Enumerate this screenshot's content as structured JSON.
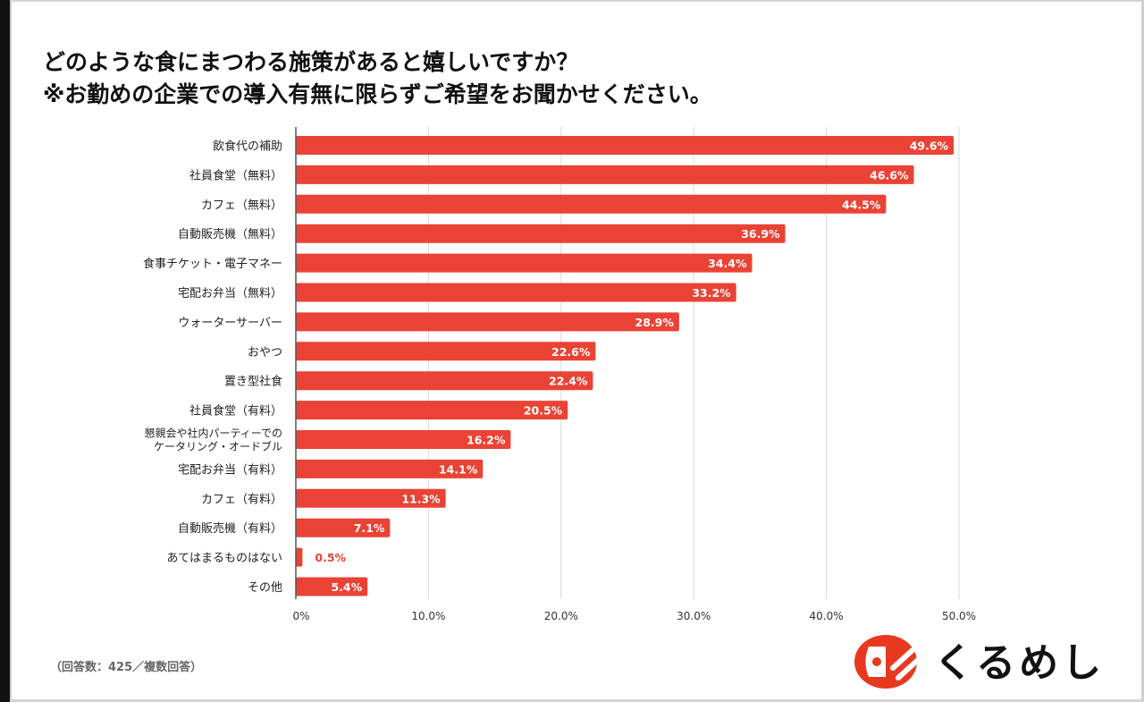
{
  "title_lines": [
    "どのような食にまつわる施策があると嬉しいですか？",
    "※お勤めの企業での導入有無に限らずご希望をお聞かせください。"
  ],
  "note": "（回答数：425／複数回答）",
  "logo": {
    "text": "くるめし",
    "accent_color": "#e8391f"
  },
  "colors": {
    "bar": "#ea4335",
    "grid": "#d9d9d9",
    "axis": "#555555",
    "label_inside": "#ffffff",
    "label_outside": "#ea4335"
  },
  "chart_data": {
    "type": "bar",
    "orientation": "horizontal",
    "title": "どのような食にまつわる施策があると嬉しいですか？ ※お勤めの企業での導入有無に限らずご希望をお聞かせください。",
    "xlabel": "",
    "ylabel": "",
    "xlim": [
      0,
      50
    ],
    "grid": true,
    "categories": [
      "飲食代の補助",
      "社員食堂（無料）",
      "カフェ（無料）",
      "自動販売機（無料）",
      "食事チケット・電子マネー",
      "宅配お弁当（無料）",
      "ウォーターサーバー",
      "おやつ",
      "置き型社食",
      "社員食堂（有料）",
      "懇親会や社内パーティーでの\nケータリング・オードブル",
      "宅配お弁当（有料）",
      "カフェ（有料）",
      "自動販売機（有料）",
      "あてはまるものはない",
      "その他"
    ],
    "values": [
      49.6,
      46.6,
      44.5,
      36.9,
      34.4,
      33.2,
      28.9,
      22.6,
      22.4,
      20.5,
      16.2,
      14.1,
      11.3,
      7.1,
      0.5,
      5.4
    ],
    "value_labels": [
      "49.6%",
      "46.6%",
      "44.5%",
      "36.9%",
      "34.4%",
      "33.2%",
      "28.9%",
      "22.6%",
      "22.4%",
      "20.5%",
      "16.2%",
      "14.1%",
      "11.3%",
      "7.1%",
      "0.5%",
      "5.4%"
    ],
    "x_ticks": [
      0,
      10,
      20,
      30,
      40,
      50
    ],
    "x_tick_labels": [
      "0%",
      "10.0%",
      "20.0%",
      "30.0%",
      "40.0%",
      "50.0%"
    ]
  }
}
